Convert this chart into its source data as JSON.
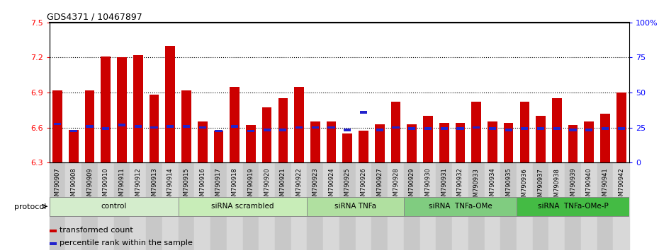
{
  "title": "GDS4371 / 10467897",
  "ylim_left": [
    6.3,
    7.5
  ],
  "ylim_right": [
    0,
    100
  ],
  "yticks_left": [
    6.3,
    6.6,
    6.9,
    7.2,
    7.5
  ],
  "ytick_labels_left": [
    "6.3",
    "6.6",
    "6.9",
    "7.2",
    "7.5"
  ],
  "yticks_right": [
    0,
    25,
    50,
    75,
    100
  ],
  "ytick_labels_right": [
    "0",
    "25",
    "50",
    "75",
    "100%"
  ],
  "hlines": [
    6.6,
    6.9,
    7.2
  ],
  "samples": [
    "GSM790907",
    "GSM790908",
    "GSM790909",
    "GSM790910",
    "GSM790911",
    "GSM790912",
    "GSM790913",
    "GSM790914",
    "GSM790915",
    "GSM790916",
    "GSM790917",
    "GSM790918",
    "GSM790919",
    "GSM790920",
    "GSM790921",
    "GSM790922",
    "GSM790923",
    "GSM790924",
    "GSM790925",
    "GSM790926",
    "GSM790927",
    "GSM790928",
    "GSM790929",
    "GSM790930",
    "GSM790931",
    "GSM790932",
    "GSM790933",
    "GSM790934",
    "GSM790935",
    "GSM790936",
    "GSM790937",
    "GSM790938",
    "GSM790939",
    "GSM790940",
    "GSM790941",
    "GSM790942"
  ],
  "red_values": [
    6.92,
    6.58,
    6.92,
    7.21,
    7.2,
    7.22,
    6.88,
    7.3,
    6.92,
    6.65,
    6.57,
    6.95,
    6.62,
    6.77,
    6.85,
    6.95,
    6.65,
    6.65,
    6.55,
    6.57,
    6.63,
    6.82,
    6.63,
    6.7,
    6.64,
    6.64,
    6.82,
    6.65,
    6.64,
    6.82,
    6.7,
    6.85,
    6.62,
    6.65,
    6.72,
    6.9
  ],
  "blue_values": [
    6.63,
    6.57,
    6.61,
    6.59,
    6.62,
    6.61,
    6.6,
    6.61,
    6.61,
    6.6,
    6.57,
    6.61,
    6.57,
    6.58,
    6.58,
    6.6,
    6.6,
    6.6,
    6.58,
    6.73,
    6.58,
    6.6,
    6.59,
    6.59,
    6.59,
    6.59,
    6.6,
    6.59,
    6.58,
    6.59,
    6.59,
    6.59,
    6.58,
    6.58,
    6.59,
    6.59
  ],
  "groups": [
    {
      "label": "control",
      "start": 0,
      "end": 8,
      "color": "#d4edcc"
    },
    {
      "label": "siRNA scrambled",
      "start": 8,
      "end": 16,
      "color": "#c8edb8"
    },
    {
      "label": "siRNA TNFa",
      "start": 16,
      "end": 22,
      "color": "#b0e0a0"
    },
    {
      "label": "siRNA  TNFa-OMe",
      "start": 22,
      "end": 29,
      "color": "#80cc80"
    },
    {
      "label": "siRNA  TNFa-OMe-P",
      "start": 29,
      "end": 36,
      "color": "#44bb44"
    }
  ],
  "legend_red": "transformed count",
  "legend_blue": "percentile rank within the sample",
  "bar_color_red": "#cc0000",
  "bar_color_blue": "#2222cc",
  "bar_width": 0.6,
  "base_value": 6.3
}
